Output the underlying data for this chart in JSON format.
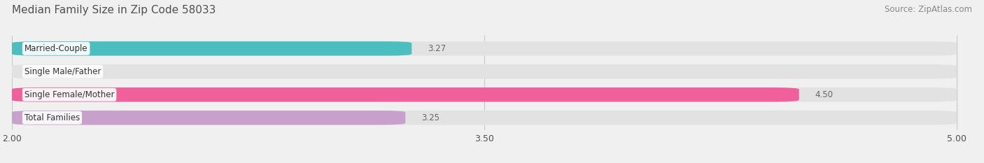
{
  "title": "Median Family Size in Zip Code 58033",
  "source": "Source: ZipAtlas.com",
  "categories": [
    "Married-Couple",
    "Single Male/Father",
    "Single Female/Mother",
    "Total Families"
  ],
  "values": [
    3.27,
    2.0,
    4.5,
    3.25
  ],
  "bar_colors": [
    "#4bbfc0",
    "#a0b8e0",
    "#f0609a",
    "#c8a0cc"
  ],
  "xlim_left": 2.0,
  "xlim_right": 5.0,
  "xticks": [
    2.0,
    3.5,
    5.0
  ],
  "background_color": "#f0f0f0",
  "bar_background_color": "#e2e2e2",
  "title_color": "#505050",
  "source_color": "#888888",
  "label_color": "#505050",
  "value_color": "#666666",
  "title_fontsize": 11,
  "source_fontsize": 8.5,
  "label_fontsize": 8.5,
  "value_fontsize": 8.5,
  "tick_fontsize": 9
}
